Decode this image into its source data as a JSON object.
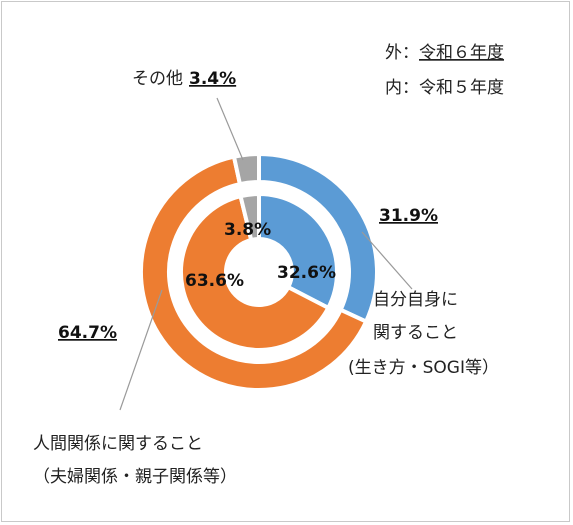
{
  "chart_data": {
    "type": "donut",
    "title": "",
    "legend": {
      "outer_label": "外：",
      "outer_year": "令和６年度",
      "inner_label": "内：",
      "inner_year": "令和５年度"
    },
    "categories": [
      {
        "key": "self",
        "label_lines": [
          "自分自身に",
          "関すること",
          "(生き方・SOGI等）"
        ],
        "color": "#5b9bd5"
      },
      {
        "key": "relations",
        "label_lines": [
          "人間関係に関すること",
          "（夫婦関係・親子関係等）"
        ],
        "color": "#ed7d31"
      },
      {
        "key": "other",
        "label_lines": [
          "その他"
        ],
        "color": "#a5a5a5"
      }
    ],
    "series": [
      {
        "ring": "outer",
        "values": [
          31.9,
          64.7,
          3.4
        ],
        "labels": [
          "31.9%",
          "64.7%",
          "3.4%"
        ]
      },
      {
        "ring": "inner",
        "values": [
          32.6,
          63.6,
          3.8
        ],
        "labels": [
          "32.6%",
          "63.6%",
          "3.8%"
        ]
      }
    ]
  }
}
